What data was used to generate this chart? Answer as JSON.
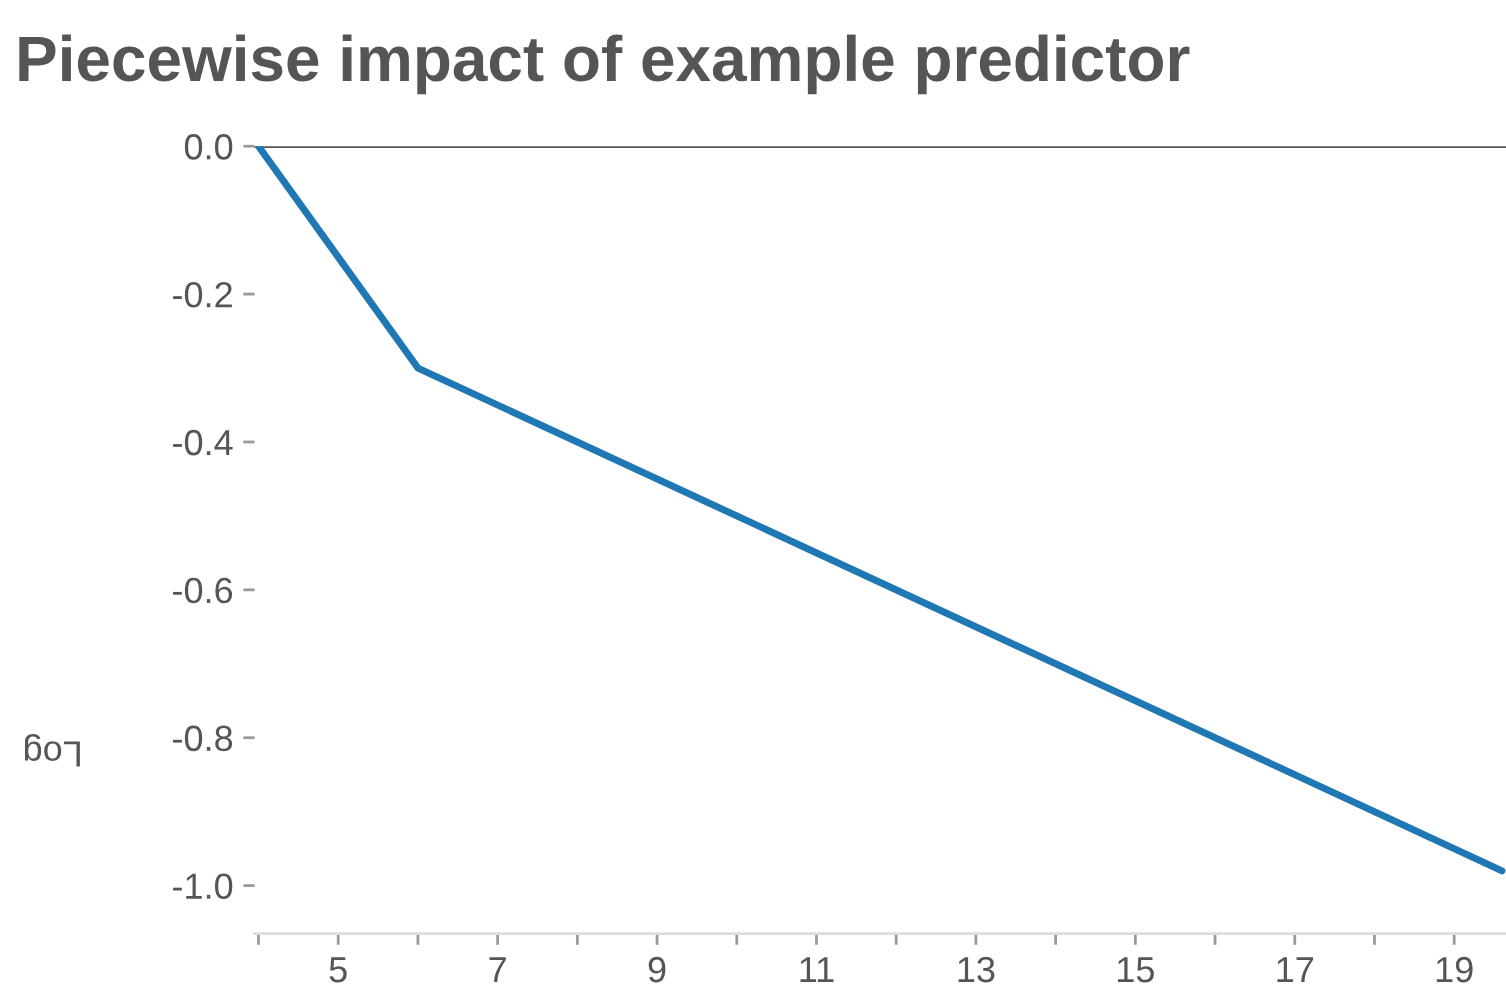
{
  "chart_data": {
    "type": "line",
    "title": "Piecewise impact of example predictor",
    "ylabel": "Log",
    "x": [
      4,
      5,
      6,
      19.6
    ],
    "series": [
      {
        "color": "#1f77b4",
        "values": [
          0,
          -0.15,
          -0.3,
          -0.98
        ]
      }
    ],
    "xlim": [
      3.95,
      19.65
    ],
    "ylim": [
      -1.065,
      0
    ],
    "xticks": [
      {
        "value": 4,
        "label": null
      },
      5,
      {
        "value": 6,
        "label": null
      },
      7,
      {
        "value": 8,
        "label": null
      },
      9,
      {
        "value": 10,
        "label": null
      },
      11,
      {
        "value": 12,
        "label": null
      },
      13,
      {
        "value": 14,
        "label": null
      },
      15,
      {
        "value": 16,
        "label": null
      },
      17,
      {
        "value": 18,
        "label": null
      },
      19
    ],
    "yticks": [
      {
        "value": 0,
        "label": "0.0"
      },
      {
        "value": -0.2,
        "label": "-0.2"
      },
      {
        "value": -0.4,
        "label": "-0.4"
      },
      {
        "value": -0.6,
        "label": "-0.6"
      },
      {
        "value": -0.8,
        "label": "-0.8"
      },
      {
        "value": -1.0,
        "label": "-1.0"
      }
    ],
    "ref_lines": [
      {
        "axis": "y",
        "value": 0,
        "color": "#555555"
      }
    ],
    "grid": false,
    "legend": false
  }
}
